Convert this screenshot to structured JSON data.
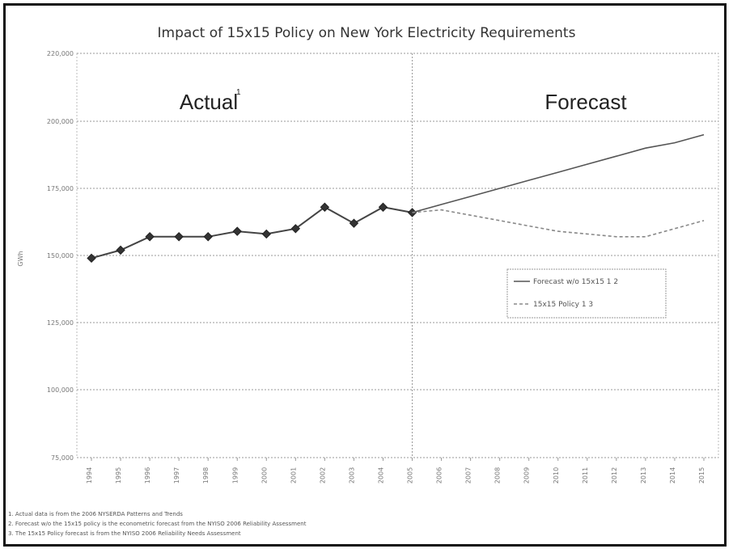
{
  "chart_data": {
    "type": "line",
    "title": "Impact of 15x15 Policy on New York Electricity Requirements",
    "ylabel": "GWh",
    "ylim": [
      75000,
      220000
    ],
    "y_ticks": [
      "75,000",
      "100,000",
      "125,000",
      "150,000",
      "175,000",
      "200,000",
      "220,000"
    ],
    "x": [
      "1994",
      "1995",
      "1996",
      "1997",
      "1998",
      "1999",
      "2000",
      "2001",
      "2002",
      "2003",
      "2004",
      "2005",
      "2006",
      "2007",
      "2008",
      "2009",
      "2010",
      "2011",
      "2012",
      "2013",
      "2014",
      "2015"
    ],
    "periods": {
      "actual": "Actual",
      "actual_sup": "1",
      "forecast": "Forecast"
    },
    "series": [
      {
        "name": "Actual",
        "color": "#444444",
        "marker": "diamond",
        "values": [
          149000,
          152000,
          157000,
          157000,
          157000,
          159000,
          158000,
          160000,
          168000,
          162000,
          168000,
          166000,
          null,
          null,
          null,
          null,
          null,
          null,
          null,
          null,
          null,
          null
        ]
      },
      {
        "name": "Forecast w/o 15x15 1 2",
        "color": "#555555",
        "dash": false,
        "values": [
          null,
          null,
          null,
          null,
          null,
          null,
          null,
          null,
          null,
          null,
          null,
          166000,
          169000,
          172000,
          175000,
          178000,
          181000,
          184000,
          187000,
          190000,
          192000,
          195000
        ]
      },
      {
        "name": "15x15 Policy 1 3",
        "color": "#888888",
        "dash": true,
        "values": [
          null,
          null,
          null,
          null,
          null,
          null,
          null,
          null,
          null,
          null,
          null,
          166000,
          167000,
          165000,
          163000,
          161000,
          159000,
          158000,
          157000,
          157000,
          160000,
          163000
        ]
      }
    ],
    "grid": true,
    "legend_position": "right-middle"
  },
  "footnotes": [
    "1. Actual data is from the 2006 NYSERDA Patterns and Trends",
    "2. Forecast w/o the 15x15 policy is the econometric forecast from the NYISO 2006 Reliability Assessment",
    "3. The 15x15 Policy forecast is from the NYISO 2006 Reliability Needs Assessment"
  ]
}
